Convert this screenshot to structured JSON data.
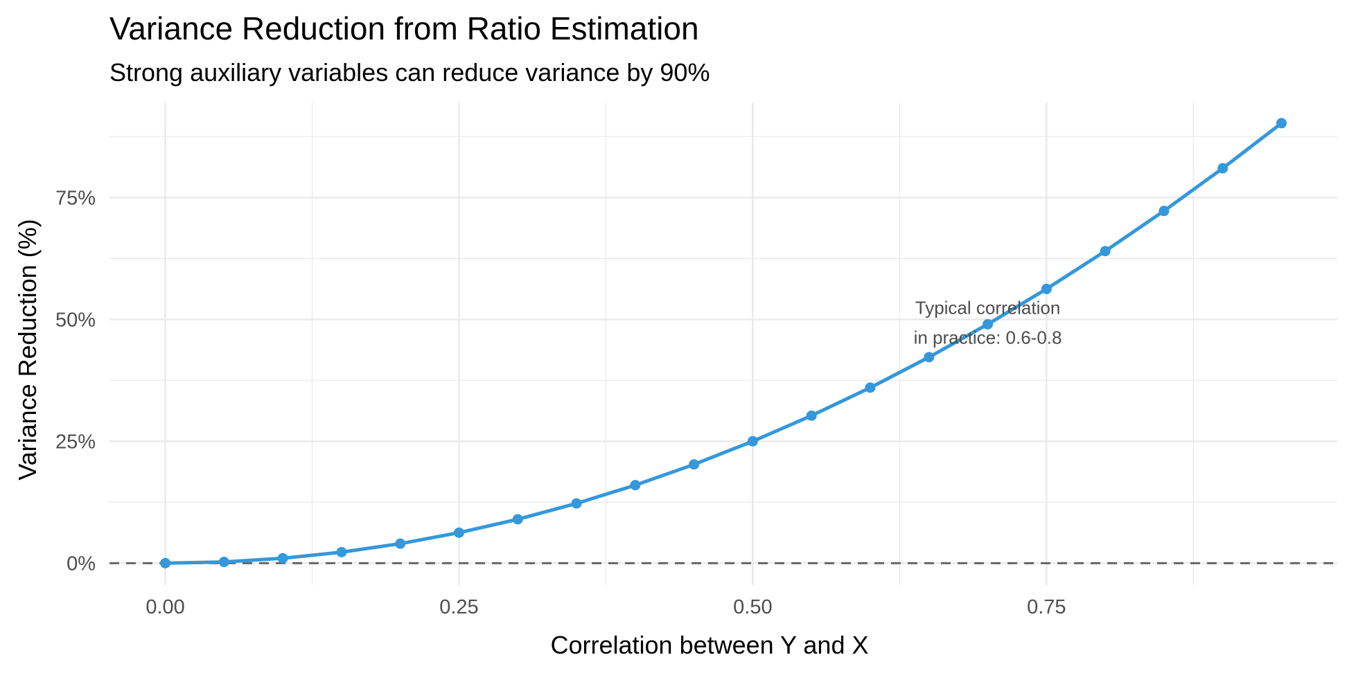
{
  "chart_data": {
    "type": "line",
    "title": "Variance Reduction from Ratio Estimation",
    "subtitle": "Strong auxiliary variables can reduce variance by 90%",
    "xlabel": "Correlation between Y and X",
    "ylabel": "Variance Reduction (%)",
    "xlim": [
      -0.0475,
      0.9975
    ],
    "ylim": [
      -4.5,
      94.5
    ],
    "x_ticks": [
      0.0,
      0.25,
      0.5,
      0.75
    ],
    "x_tick_labels": [
      "0.00",
      "0.25",
      "0.50",
      "0.75"
    ],
    "y_ticks": [
      0,
      25,
      50,
      75
    ],
    "y_tick_labels": [
      "0%",
      "25%",
      "50%",
      "75%"
    ],
    "grid": true,
    "reference_line": {
      "y": 0,
      "style": "dashed",
      "color": "#666666"
    },
    "series": [
      {
        "color": "#3498db",
        "x": [
          0.0,
          0.05,
          0.1,
          0.15,
          0.2,
          0.25,
          0.3,
          0.35,
          0.4,
          0.45,
          0.5,
          0.55,
          0.6,
          0.65,
          0.7,
          0.75,
          0.8,
          0.85,
          0.9,
          0.95
        ],
        "y": [
          0,
          0.25,
          1,
          2.25,
          4,
          6.25,
          9,
          12.25,
          16,
          20.25,
          25,
          30.25,
          36,
          42.25,
          49,
          56.25,
          64,
          72.25,
          81,
          90.25
        ]
      }
    ],
    "annotation": {
      "x": 0.7,
      "y": 50,
      "lines": [
        "Typical correlation",
        "in practice: 0.6-0.8"
      ]
    }
  }
}
